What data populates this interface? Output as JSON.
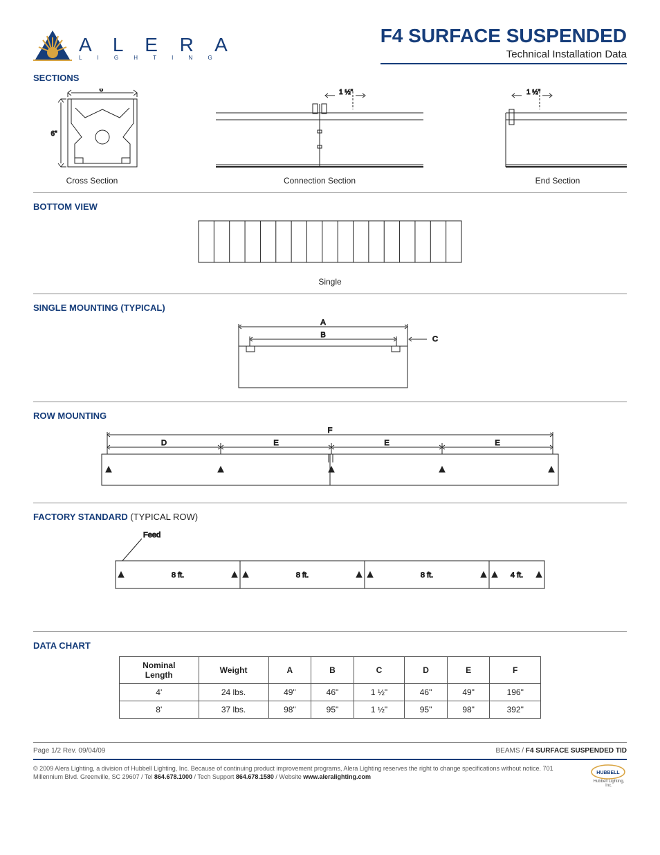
{
  "brand": {
    "name": "A L E R A",
    "tagline": "L  I  G  H  T  I  N  G"
  },
  "document": {
    "title": "F4 SURFACE SUSPENDED",
    "subtitle": "Technical Installation Data"
  },
  "sections": {
    "heading": "SECTIONS",
    "cross": {
      "label": "Cross Section",
      "w": "6\"",
      "h": "6\""
    },
    "connection": {
      "label": "Connection Section",
      "offset": "1 ½\""
    },
    "end": {
      "label": "End Section",
      "offset": "1 ½\""
    }
  },
  "bottom_view": {
    "heading": "BOTTOM VIEW",
    "label": "Single",
    "slat_count": 17
  },
  "single_mount": {
    "heading": "SINGLE MOUNTING (TYPICAL)",
    "labels": {
      "A": "A",
      "B": "B",
      "C": "C"
    }
  },
  "row_mount": {
    "heading": "ROW MOUNTING",
    "labels": {
      "D": "D",
      "E": "E",
      "F": "F"
    }
  },
  "factory_std": {
    "heading": "FACTORY STANDARD",
    "suffix": "(TYPICAL ROW)",
    "feed": "Feed",
    "segments": [
      "8 ft.",
      "8 ft.",
      "8 ft.",
      "4 ft."
    ]
  },
  "data_chart": {
    "heading": "DATA CHART",
    "columns": [
      "Nominal Length",
      "Weight",
      "A",
      "B",
      "C",
      "D",
      "E",
      "F"
    ],
    "rows": [
      [
        "4'",
        "24 lbs.",
        "49\"",
        "46\"",
        "1  ½\"",
        "46\"",
        "49\"",
        "196\""
      ],
      [
        "8'",
        "37 lbs.",
        "98\"",
        "95\"",
        "1  ½\"",
        "95\"",
        "98\"",
        "392\""
      ]
    ]
  },
  "footer": {
    "page": "Page 1/2 Rev. 09/04/09",
    "crumb_prefix": "BEAMS / ",
    "crumb_bold": "F4 SURFACE SUSPENDED  TID",
    "legal_pre": "© 2009 Alera Lighting, a division of Hubbell Lighting, Inc. Because of continuing product improvement programs, Alera Lighting reserves the right to change specifications without notice. 701 Millennium Blvd. Greenville, SC 29607 / Tel ",
    "tel": "864.678.1000",
    "legal_mid": " / Tech Support ",
    "support": "864.678.1580",
    "legal_mid2": " / Website ",
    "site": "www.aleralighting.com",
    "hubbell": "Hubbell Lighting, Inc."
  },
  "colors": {
    "brand": "#163d7a",
    "gold": "#d9a441",
    "line": "#222222",
    "grey": "#888888"
  }
}
